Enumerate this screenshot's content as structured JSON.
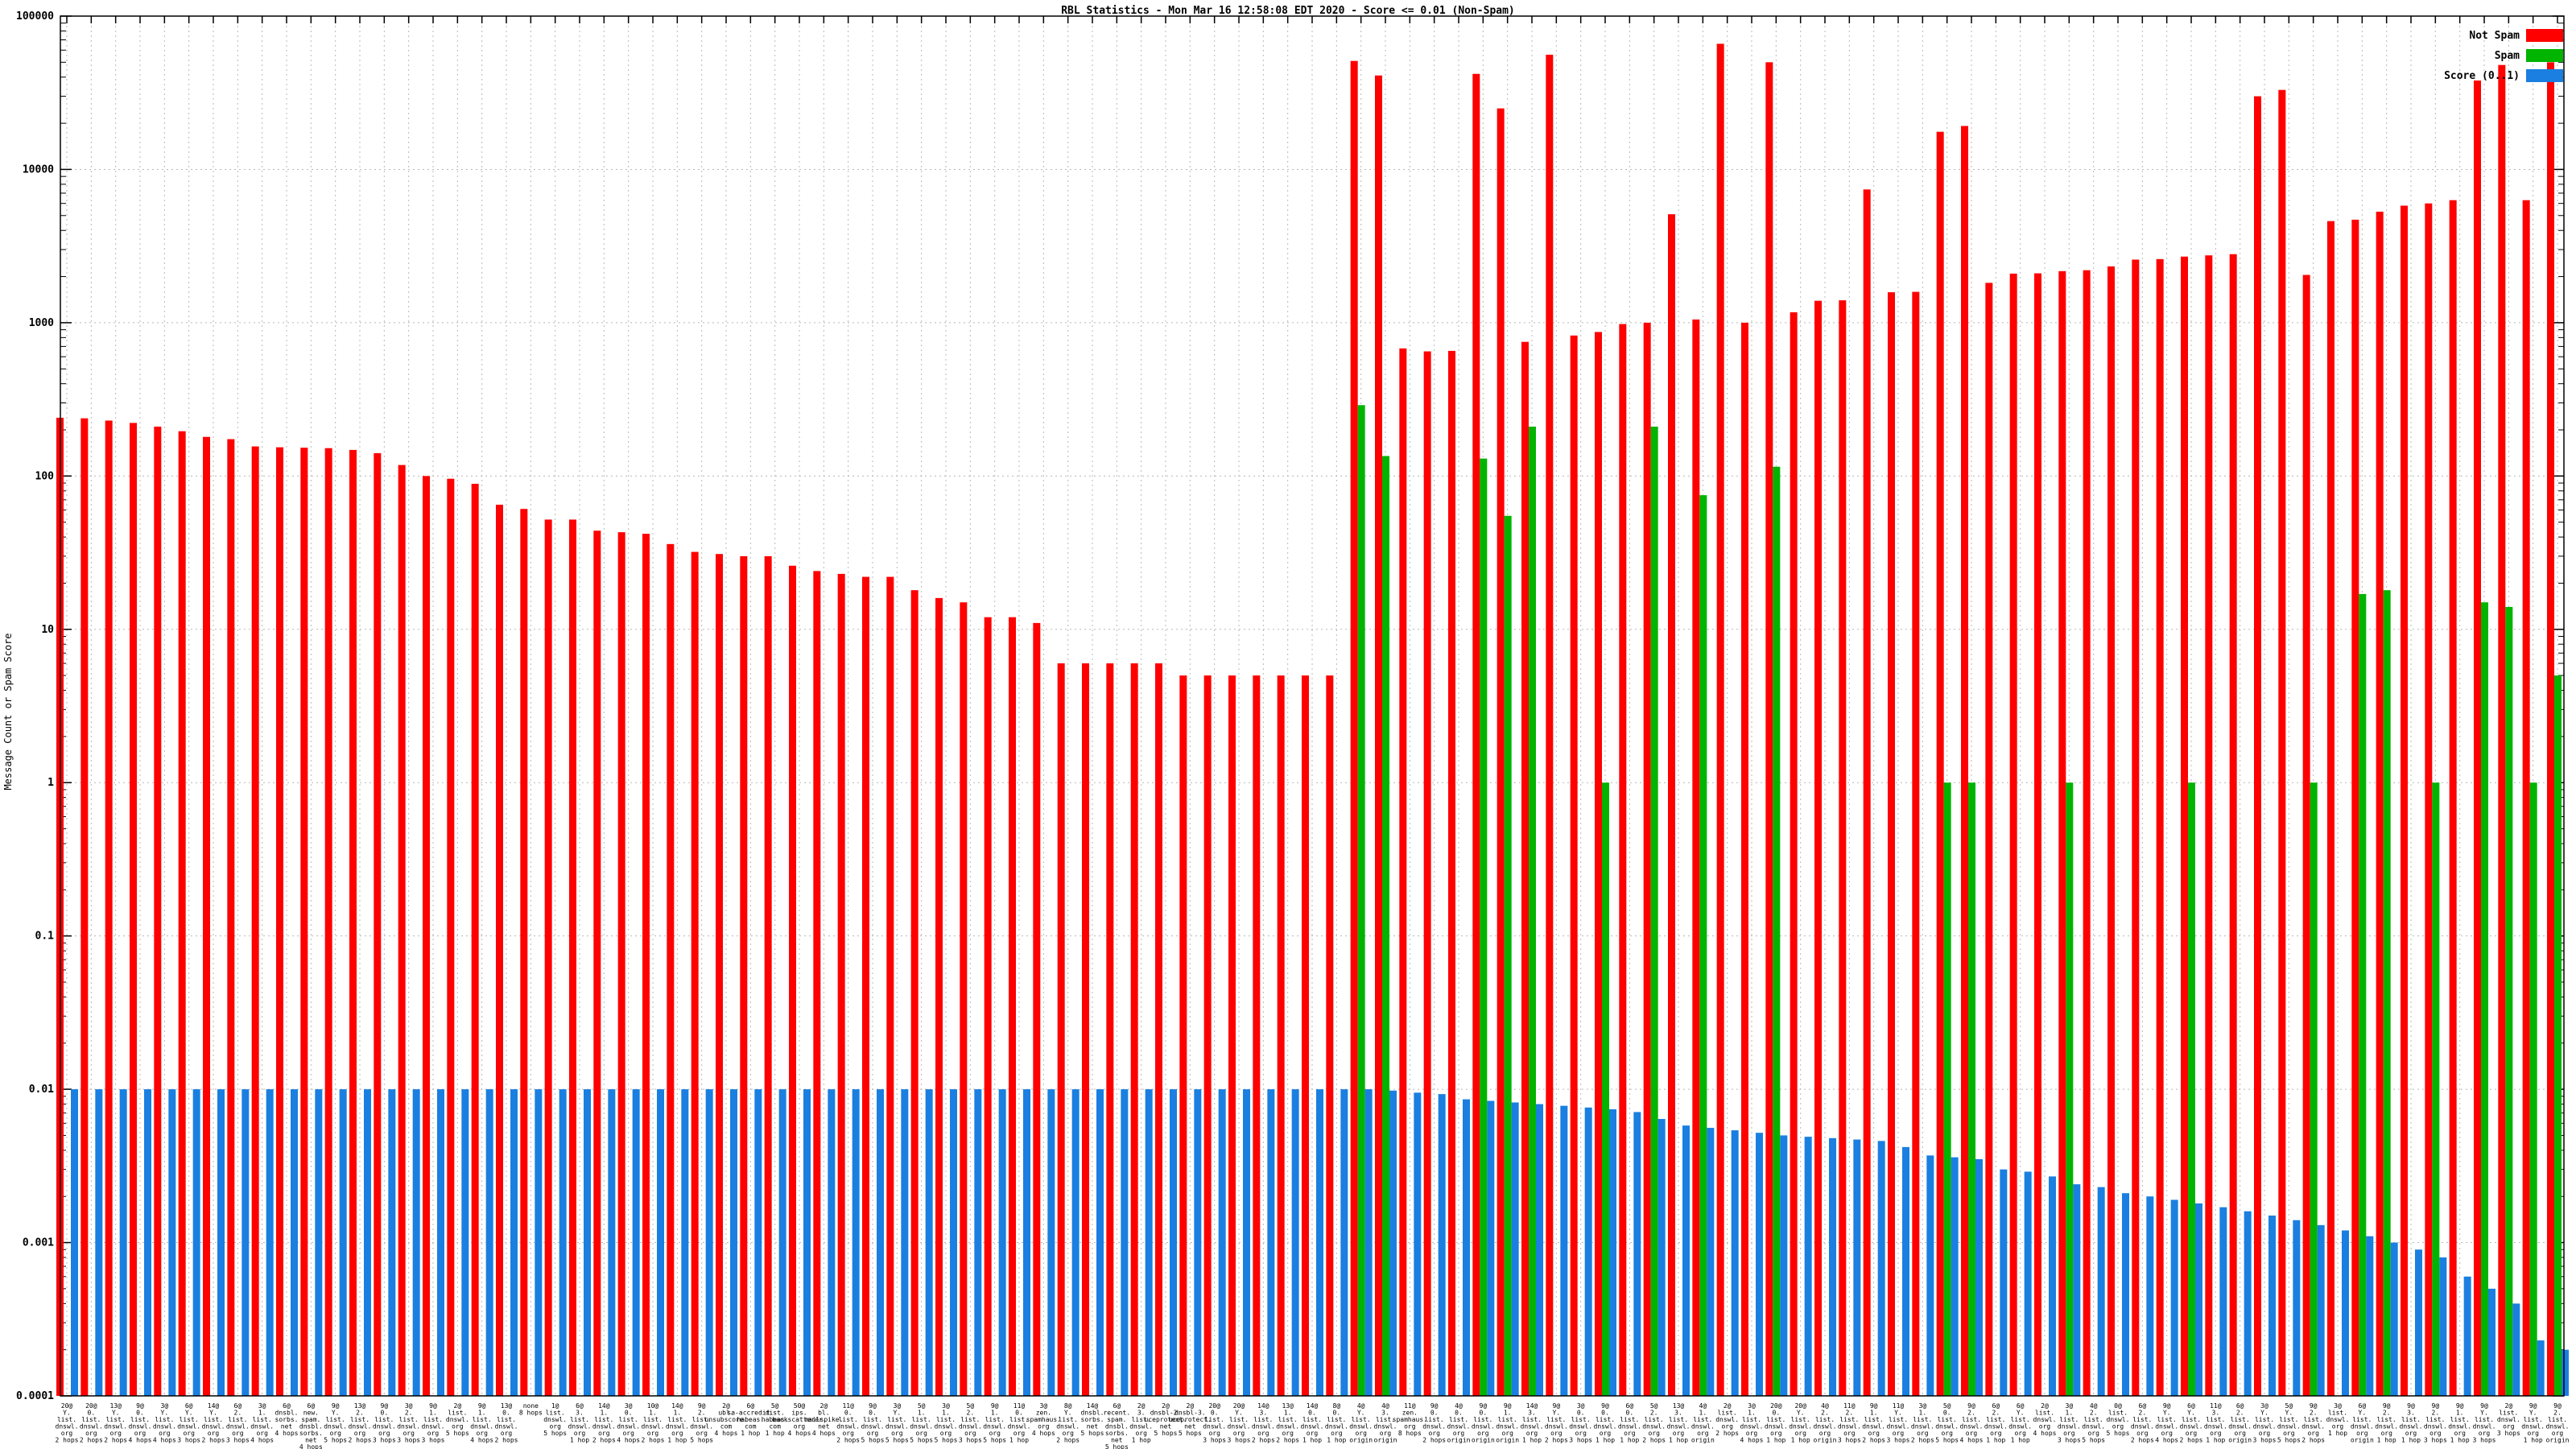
{
  "chart_data": {
    "type": "bar",
    "title": "RBL Statistics - Mon Mar 16 12:58:08 EDT 2020 - Score <= 0.01 (Non-Spam)",
    "ylabel": "Message Count or Spam Score",
    "xlabel": "",
    "log_scale_y": true,
    "ylim": [
      0.0001,
      100000
    ],
    "y_ticks": [
      "100000",
      "10000",
      "1000",
      "100",
      "10",
      "1",
      "0.1",
      "0.01",
      "0.001",
      "0.0001"
    ],
    "grid": "dotted",
    "legend_position": "top-right",
    "categories": [
      "20@|Y.|list.|dnswl.|org|2 hops",
      "20@|0.|list.|dnswl.|org|2 hops",
      "13@|Y.|list.|dnswl.|org|2 hops",
      "9@|0.|list.|dnswl.|org|4 hops",
      "3@|Y.|list.|dnswl.|org|4 hops",
      "6@|Y.|list.|dnswl.|org|3 hops",
      "14@|Y.|list.|dnswl.|org|2 hops",
      "6@|2.|list.|dnswl.|org|3 hops",
      "3@|1.|list.|dnswl.|org|4 hops",
      "6@|dnsbl.|sorbs.|net|4 hops",
      "6@|new.|spam.|dnsbl.|sorbs.|net|4 hops",
      "9@|Y.|list.|dnswl.|org|5 hops",
      "13@|2.|list.|dnswl.|org|2 hops",
      "9@|0.|list.|dnswl.|org|3 hops",
      "3@|2.|list.|dnswl.|org|3 hops",
      "9@|1.|list.|dnswl.|org|3 hops",
      "2@|list.|dnswl.|org|5 hops",
      "9@|1.|list.|dnswl.|org|4 hops",
      "13@|0.|list.|dnswl.|org|2 hops",
      "none|8 hops",
      "1@|list.|dnswl.|org|5 hops",
      "6@|3.|list.|dnswl.|org|1 hop",
      "14@|1.|list.|dnswl.|org|2 hops",
      "3@|0.|list.|dnswl.|org|4 hops",
      "10@|1.|list.|dnswl.|org|2 hops",
      "14@|1.|list.|dnswl.|org|1 hop",
      "9@|2.|list.|dnswl.|org|5 hops",
      "2@|ubl.|unsubscore.|com|4 hops",
      "6@|sa-accredit.|habeas.|com|1 hop",
      "5@|dist.|habeas.|com|1 hop",
      "50@|ips.|backscatterer.|org|4 hops",
      "2@|bl.|mailspike.|net|4 hops",
      "11@|0.|list.|dnswl.|org|2 hops",
      "9@|0.|list.|dnswl.|org|5 hops",
      "3@|Y.|list.|dnswl.|org|5 hops",
      "5@|1.|list.|dnswl.|org|5 hops",
      "3@|1.|list.|dnswl.|org|5 hops",
      "5@|2.|list.|dnswl.|org|3 hops",
      "9@|1.|list.|dnswl.|org|5 hops",
      "11@|0.|list.|dnswl.|org|1 hop",
      "3@|zen.|spamhaus.|org|4 hops",
      "8@|Y.|list.|dnswl.|org|2 hops",
      "14@|dnsbl.|sorbs.|net|5 hops",
      "6@|recent.|spam.|dnsbl.|sorbs.|net|5 hops",
      "2@|3.|list.|dnswl.|org|1 hop",
      "2@|dnsbl-2.|uceprotect.|net|5 hops",
      "2@|dnsbl-3.|uceprotect.|net|5 hops",
      "20@|0.|list.|dnswl.|org|3 hops",
      "20@|Y.|list.|dnswl.|org|3 hops",
      "14@|3.|list.|dnswl.|org|2 hops",
      "13@|1.|list.|dnswl.|org|2 hops",
      "14@|0.|list.|dnswl.|org|1 hop",
      "8@|0.|list.|dnswl.|org|1 hop",
      "4@|Y.|list.|dnswl.|org|origin",
      "4@|3.|list.|dnswl.|org|origin",
      "11@|zen.|spamhaus.|org|8 hops",
      "9@|0.|list.|dnswl.|org|2 hops",
      "4@|0.|list.|dnswl.|org|origin",
      "9@|0.|list.|dnswl.|org|origin",
      "9@|1.|list.|dnswl.|org|origin",
      "14@|3.|list.|dnswl.|org|1 hop",
      "9@|Y.|list.|dnswl.|org|2 hops",
      "3@|0.|list.|dnswl.|org|3 hops",
      "9@|0.|list.|dnswl.|org|1 hop",
      "6@|0.|list.|dnswl.|org|1 hop",
      "5@|2.|list.|dnswl.|org|2 hops",
      "13@|3.|list.|dnswl.|org|1 hop",
      "4@|1.|list.|dnswl.|org|origin",
      "2@|list.|dnswl.|org|2 hops",
      "3@|1.|list.|dnswl.|org|4 hops",
      "20@|0.|list.|dnswl.|org|1 hop",
      "20@|Y.|list.|dnswl.|org|1 hop",
      "4@|2.|list.|dnswl.|org|origin",
      "11@|2.|list.|dnswl.|org|3 hops",
      "9@|1.|list.|dnswl.|org|2 hops",
      "11@|Y.|list.|dnswl.|org|3 hops",
      "3@|1.|list.|dnswl.|org|2 hops",
      "5@|0.|list.|dnswl.|org|5 hops",
      "9@|2.|list.|dnswl.|org|4 hops",
      "6@|2.|list.|dnswl.|org|1 hop",
      "6@|Y.|list.|dnswl.|org|1 hop",
      "2@|list.|dnswl.|org|4 hops",
      "3@|1.|list.|dnswl.|org|3 hops",
      "4@|2.|list.|dnswl.|org|5 hops",
      "0@|list.|dnswl.|org|5 hops",
      "6@|2.|list.|dnswl.|org|2 hops",
      "9@|Y.|list.|dnswl.|org|4 hops",
      "6@|Y.|list.|dnswl.|org|2 hops",
      "11@|3.|list.|dnswl.|org|1 hop",
      "6@|2.|list.|dnswl.|org|origin",
      "3@|Y.|list.|dnswl.|org|3 hops",
      "5@|Y.|list.|dnswl.|org|5 hops",
      "9@|2.|list.|dnswl.|org|2 hops",
      "3@|list.|dnswl.|org|1 hop",
      "6@|Y.|list.|dnswl.|org|origin",
      "9@|2.|list.|dnswl.|org|1 hop",
      "9@|3.|list.|dnswl.|org|1 hop",
      "9@|2.|list.|dnswl.|org|3 hops",
      "9@|1.|list.|dnswl.|org|1 hop",
      "9@|Y.|list.|dnswl.|org|3 hops",
      "2@|list.|dnswl.|org|3 hops",
      "9@|Y.|list.|dnswl.|org|1 hop",
      "9@|2.|list.|dnswl.|org|origin"
    ],
    "series": [
      {
        "name": "Not Spam",
        "color": "#ff0000",
        "values": [
          240,
          238,
          230,
          222,
          210,
          196,
          180,
          174,
          156,
          154,
          153,
          152,
          148,
          141,
          118,
          100,
          96,
          89,
          65,
          61,
          52,
          52,
          44,
          43,
          42,
          36,
          32,
          31,
          30,
          30,
          26,
          24,
          23,
          22,
          22,
          18,
          16,
          15,
          12,
          12,
          11,
          6,
          6,
          6,
          6,
          6,
          5,
          5,
          5,
          5,
          5,
          5,
          5,
          51000,
          41000,
          680,
          650,
          655,
          42000,
          25000,
          750,
          56000,
          825,
          870,
          980,
          1000,
          5100,
          1050,
          66000,
          1000,
          50000,
          1170,
          1390,
          1400,
          7400,
          1580,
          1590,
          17600,
          19200,
          1820,
          2090,
          2100,
          2170,
          2200,
          2330,
          2580,
          2600,
          2700,
          2750,
          2800,
          30000,
          33000,
          2050,
          4600,
          4700,
          5300,
          5800,
          6000,
          6300,
          38000,
          48000,
          6300,
          50000
        ]
      },
      {
        "name": "Spam",
        "color": "#00b400",
        "values": [
          0,
          0,
          0,
          0,
          0,
          0,
          0,
          0,
          0,
          0,
          0,
          0,
          0,
          0,
          0,
          0,
          0,
          0,
          0,
          0,
          0,
          0,
          0,
          0,
          0,
          0,
          0,
          0,
          0,
          0,
          0,
          0,
          0,
          0,
          0,
          0,
          0,
          0,
          0,
          0,
          0,
          0,
          0,
          0,
          0,
          0,
          0,
          0,
          0,
          0,
          0,
          0,
          0,
          290,
          135,
          0,
          0,
          0,
          130,
          55,
          210,
          0,
          0,
          1,
          0,
          210,
          0,
          75,
          0,
          0,
          115,
          0,
          0,
          0,
          0,
          0,
          0,
          1,
          1,
          0,
          0,
          0,
          1,
          0,
          0,
          0,
          0,
          1,
          0,
          0,
          0,
          0,
          1,
          0,
          17,
          18,
          0,
          1,
          0,
          15,
          14,
          1,
          5
        ]
      },
      {
        "name": "Score (0..1)",
        "color": "#1a7fe0",
        "values": [
          0.01,
          0.01,
          0.01,
          0.01,
          0.01,
          0.01,
          0.01,
          0.01,
          0.01,
          0.01,
          0.01,
          0.01,
          0.01,
          0.01,
          0.01,
          0.01,
          0.01,
          0.01,
          0.01,
          0.01,
          0.01,
          0.01,
          0.01,
          0.01,
          0.01,
          0.01,
          0.01,
          0.01,
          0.01,
          0.01,
          0.01,
          0.01,
          0.01,
          0.01,
          0.01,
          0.01,
          0.01,
          0.01,
          0.01,
          0.01,
          0.01,
          0.01,
          0.01,
          0.01,
          0.01,
          0.01,
          0.01,
          0.01,
          0.01,
          0.01,
          0.01,
          0.01,
          0.01,
          0.01,
          0.0098,
          0.0095,
          0.0093,
          0.0086,
          0.0084,
          0.0082,
          0.008,
          0.0078,
          0.0076,
          0.0074,
          0.0071,
          0.0064,
          0.0058,
          0.0056,
          0.0054,
          0.0052,
          0.005,
          0.0049,
          0.0048,
          0.0047,
          0.0046,
          0.0042,
          0.0037,
          0.0036,
          0.0035,
          0.003,
          0.0029,
          0.0027,
          0.0024,
          0.0023,
          0.0021,
          0.002,
          0.0019,
          0.0018,
          0.0017,
          0.0016,
          0.0015,
          0.0014,
          0.0013,
          0.0012,
          0.0011,
          0.001,
          0.0009,
          0.0008,
          0.0006,
          0.0005,
          0.0004,
          0.00023,
          0.0002
        ]
      }
    ]
  }
}
